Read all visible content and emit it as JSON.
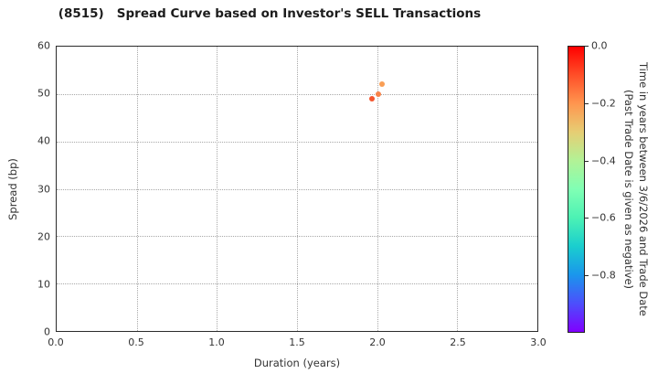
{
  "chart_data": {
    "type": "scatter",
    "title": "(8515)   Spread Curve based on Investor's SELL Transactions",
    "xlabel": "Duration (years)",
    "ylabel": "Spread (bp)",
    "xlim": [
      0.0,
      3.0
    ],
    "ylim": [
      0,
      60
    ],
    "grid": "dotted",
    "legend_position": "none",
    "x_ticks": [
      {
        "v": 0.0,
        "label": "0.0"
      },
      {
        "v": 0.5,
        "label": "0.5"
      },
      {
        "v": 1.0,
        "label": "1.0"
      },
      {
        "v": 1.5,
        "label": "1.5"
      },
      {
        "v": 2.0,
        "label": "2.0"
      },
      {
        "v": 2.5,
        "label": "2.5"
      },
      {
        "v": 3.0,
        "label": "3.0"
      }
    ],
    "y_ticks": [
      {
        "v": 0,
        "label": "0"
      },
      {
        "v": 10,
        "label": "10"
      },
      {
        "v": 20,
        "label": "20"
      },
      {
        "v": 30,
        "label": "30"
      },
      {
        "v": 40,
        "label": "40"
      },
      {
        "v": 50,
        "label": "50"
      },
      {
        "v": 60,
        "label": "60"
      }
    ],
    "points": [
      {
        "x": 1.97,
        "y": 49,
        "time_value": -0.06,
        "color": "#f4552e"
      },
      {
        "x": 2.01,
        "y": 50,
        "time_value": -0.13,
        "color": "#f8834a"
      },
      {
        "x": 2.03,
        "y": 52,
        "time_value": -0.16,
        "color": "#f99e55"
      }
    ],
    "colorbar": {
      "label_line1": "Time in years between 3/6/2026 and Trade Date",
      "label_line2": "(Past Trade Date is given as negative)",
      "range": [
        0.0,
        -1.0
      ],
      "ticks": [
        {
          "v": 0.0,
          "label": "0.0"
        },
        {
          "v": -0.2,
          "label": "−0.2"
        },
        {
          "v": -0.4,
          "label": "−0.4"
        },
        {
          "v": -0.6,
          "label": "−0.6"
        },
        {
          "v": -0.8,
          "label": "−0.8"
        }
      ],
      "colormap": "rainbow reversed (0.0=red, −1.0=violet)",
      "gradient_stops": [
        {
          "pos": 0,
          "color": "#ff0000"
        },
        {
          "pos": 5,
          "color": "#ff2814"
        },
        {
          "pos": 10,
          "color": "#ff4f28"
        },
        {
          "pos": 20,
          "color": "#ff964f"
        },
        {
          "pos": 30,
          "color": "#e6ce74"
        },
        {
          "pos": 40,
          "color": "#b2f296"
        },
        {
          "pos": 50,
          "color": "#80ffb4"
        },
        {
          "pos": 60,
          "color": "#4cf2b4"
        },
        {
          "pos": 70,
          "color": "#1acece"
        },
        {
          "pos": 80,
          "color": "#1a96ec"
        },
        {
          "pos": 90,
          "color": "#4c4ffc"
        },
        {
          "pos": 100,
          "color": "#8000ff"
        }
      ]
    }
  }
}
